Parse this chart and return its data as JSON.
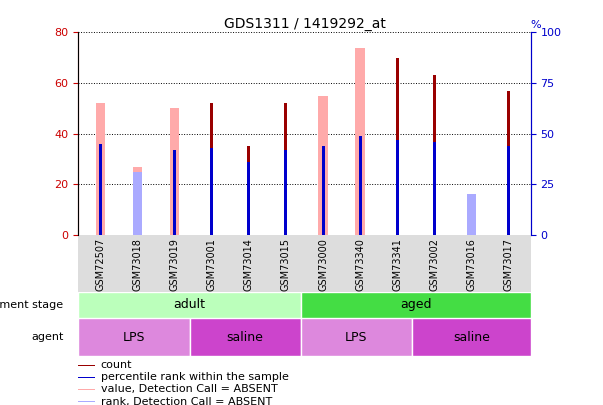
{
  "title": "GDS1311 / 1419292_at",
  "samples": [
    "GSM72507",
    "GSM73018",
    "GSM73019",
    "GSM73001",
    "GSM73014",
    "GSM73015",
    "GSM73000",
    "GSM73340",
    "GSM73341",
    "GSM73002",
    "GSM73016",
    "GSM73017"
  ],
  "count_values": [
    0,
    0,
    0,
    52,
    35,
    52,
    0,
    0,
    70,
    63,
    0,
    57
  ],
  "rank_values": [
    45,
    0,
    42,
    43,
    36,
    42,
    44,
    49,
    47,
    46,
    0,
    44
  ],
  "value_absent": [
    52,
    27,
    50,
    0,
    0,
    0,
    55,
    74,
    0,
    0,
    15,
    0
  ],
  "rank_absent": [
    0,
    31,
    0,
    0,
    0,
    0,
    0,
    0,
    0,
    0,
    20,
    0
  ],
  "count_color": "#990000",
  "rank_color": "#0000cc",
  "value_absent_color": "#ffaaaa",
  "rank_absent_color": "#aaaaff",
  "ylim_left": [
    0,
    80
  ],
  "ylim_right": [
    0,
    100
  ],
  "yticks_left": [
    0,
    20,
    40,
    60,
    80
  ],
  "yticks_right": [
    0,
    25,
    50,
    75,
    100
  ],
  "dev_stage_adult_color": "#bbffbb",
  "dev_stage_aged_color": "#44dd44",
  "agent_lps_color": "#dd88dd",
  "agent_saline_color": "#cc44cc",
  "background_color": "#ffffff",
  "left_axis_color": "#cc0000",
  "right_axis_color": "#0000cc",
  "wide_bar_width": 0.25,
  "narrow_bar_width": 0.08
}
